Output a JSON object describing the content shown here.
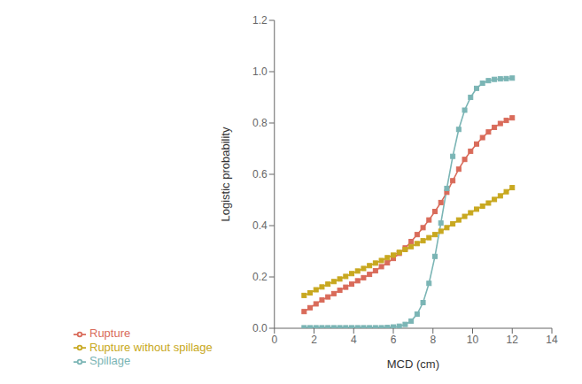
{
  "chart_data": {
    "type": "line",
    "xlabel": "MCD (cm)",
    "ylabel": "Logistic probability",
    "x": [
      1.5,
      1.8,
      2.1,
      2.4,
      2.7,
      3.0,
      3.3,
      3.6,
      3.9,
      4.2,
      4.5,
      4.8,
      5.1,
      5.4,
      5.7,
      6.0,
      6.3,
      6.6,
      6.9,
      7.2,
      7.5,
      7.8,
      8.1,
      8.4,
      8.7,
      9.0,
      9.3,
      9.6,
      9.9,
      10.2,
      10.5,
      10.8,
      11.1,
      11.4,
      11.7,
      12.0
    ],
    "series": [
      {
        "name": "Rupture",
        "color": "#D96B5A",
        "marker": "square",
        "values": [
          0.065,
          0.08,
          0.095,
          0.11,
          0.122,
          0.135,
          0.148,
          0.16,
          0.172,
          0.185,
          0.197,
          0.21,
          0.224,
          0.24,
          0.255,
          0.272,
          0.292,
          0.313,
          0.338,
          0.365,
          0.392,
          0.422,
          0.455,
          0.49,
          0.53,
          0.575,
          0.62,
          0.658,
          0.69,
          0.718,
          0.743,
          0.765,
          0.783,
          0.798,
          0.81,
          0.82
        ]
      },
      {
        "name": "Rupture without spillage",
        "color": "#C8A820",
        "marker": "square",
        "values": [
          0.128,
          0.138,
          0.15,
          0.161,
          0.172,
          0.182,
          0.192,
          0.202,
          0.213,
          0.223,
          0.233,
          0.244,
          0.254,
          0.264,
          0.275,
          0.285,
          0.296,
          0.307,
          0.318,
          0.33,
          0.341,
          0.353,
          0.365,
          0.378,
          0.392,
          0.407,
          0.422,
          0.436,
          0.45,
          0.464,
          0.476,
          0.488,
          0.502,
          0.516,
          0.532,
          0.548
        ]
      },
      {
        "name": "Spillage",
        "color": "#7BB5B5",
        "marker": "square",
        "values": [
          0.002,
          0.002,
          0.002,
          0.002,
          0.002,
          0.002,
          0.002,
          0.002,
          0.002,
          0.002,
          0.002,
          0.002,
          0.002,
          0.002,
          0.003,
          0.005,
          0.008,
          0.015,
          0.028,
          0.055,
          0.1,
          0.175,
          0.28,
          0.41,
          0.545,
          0.67,
          0.775,
          0.85,
          0.9,
          0.935,
          0.955,
          0.965,
          0.97,
          0.972,
          0.973,
          0.975
        ]
      }
    ],
    "xlim": [
      0,
      14
    ],
    "ylim": [
      0.0,
      1.2
    ],
    "xticks": [
      0,
      2,
      4,
      6,
      8,
      10,
      12,
      14
    ],
    "yticks": [
      {
        "value": 0,
        "label": "0.0"
      },
      0.2,
      0.4,
      0.6,
      0.8,
      {
        "value": 1,
        "label": "1.0"
      },
      1.2
    ],
    "grid": false,
    "legend": "bottom"
  }
}
